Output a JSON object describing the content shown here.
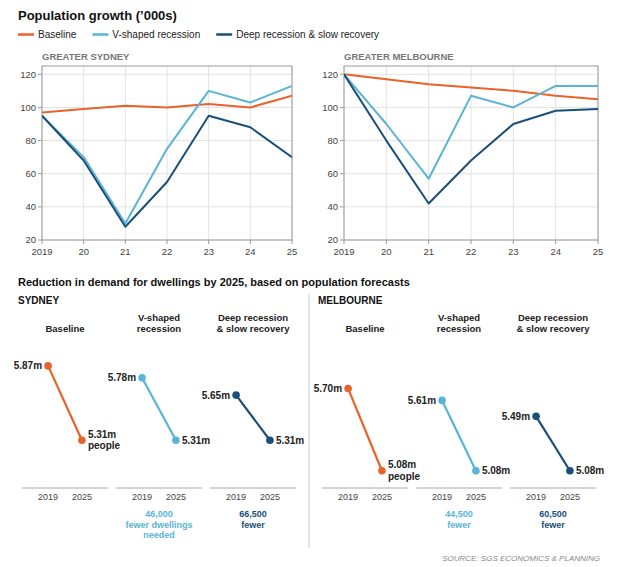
{
  "chart_data": [
    {
      "type": "line",
      "title": "Population growth (’000s)",
      "subtitle": "GREATER SYDNEY",
      "x": [
        2019,
        2020,
        2021,
        2022,
        2023,
        2024,
        2025
      ],
      "xlim": [
        2019,
        2025
      ],
      "xticks": [
        2019,
        {
          "value": 2020,
          "label": "20"
        },
        {
          "value": 2021,
          "label": "21"
        },
        {
          "value": 2022,
          "label": "22"
        },
        {
          "value": 2023,
          "label": "23"
        },
        {
          "value": 2024,
          "label": "24"
        },
        {
          "value": 2025,
          "label": "25"
        }
      ],
      "ylim": [
        20,
        125
      ],
      "yticks": [
        20,
        40,
        60,
        80,
        100,
        120
      ],
      "grid": true,
      "legend": "top",
      "series": [
        {
          "name": "Baseline",
          "color": "#e8622a",
          "values": [
            97,
            99,
            101,
            100,
            102,
            100,
            107
          ]
        },
        {
          "name": "V-shaped recession",
          "color": "#5ab4d6",
          "values": [
            95,
            70,
            30,
            75,
            110,
            103,
            113
          ]
        },
        {
          "name": "Deep recession & slow recovery",
          "color": "#1a4f7a",
          "values": [
            95,
            68,
            28,
            55,
            95,
            88,
            70
          ]
        }
      ]
    },
    {
      "type": "line",
      "subtitle": "GREATER MELBOURNE",
      "x": [
        2019,
        2020,
        2021,
        2022,
        2023,
        2024,
        2025
      ],
      "xlim": [
        2019,
        2025
      ],
      "xticks": [
        2019,
        {
          "value": 2020,
          "label": "20"
        },
        {
          "value": 2021,
          "label": "21"
        },
        {
          "value": 2022,
          "label": "22"
        },
        {
          "value": 2023,
          "label": "23"
        },
        {
          "value": 2024,
          "label": "24"
        },
        {
          "value": 2025,
          "label": "25"
        }
      ],
      "ylim": [
        20,
        125
      ],
      "yticks": [
        20,
        40,
        60,
        80,
        100,
        120
      ],
      "grid": true,
      "series": [
        {
          "color": "#e8622a",
          "values": [
            120,
            117,
            114,
            112,
            110,
            107,
            105
          ]
        },
        {
          "color": "#5ab4d6",
          "values": [
            120,
            90,
            57,
            107,
            100,
            113,
            113
          ]
        },
        {
          "color": "#1a4f7a",
          "values": [
            120,
            80,
            42,
            68,
            90,
            98,
            99
          ]
        }
      ]
    },
    {
      "type": "slope",
      "title": "Reduction in demand for dwellings by 2025, based on population forecasts",
      "subtitle": "SYDNEY",
      "categories": [
        "2019",
        "2025"
      ],
      "ylim": [
        4.95,
        6.05
      ],
      "tick_labels": "x",
      "series": [
        {
          "name": "Baseline",
          "color": "#e8622a",
          "values": [
            5.87,
            5.31
          ],
          "value_labels": [
            "5.87m",
            "5.31m\npeople"
          ]
        },
        {
          "name": "V-shaped\nrecession",
          "color": "#5ab4d6",
          "values": [
            5.78,
            5.31
          ],
          "value_labels": [
            "5.78m",
            "5.31m"
          ],
          "annotation": "46,000\nfewer dwellings\nneeded"
        },
        {
          "name": "Deep recession\n& slow recovery",
          "color": "#1a4f7a",
          "values": [
            5.65,
            5.31
          ],
          "value_labels": [
            "5.65m",
            "5.31m"
          ],
          "annotation": "66,500\nfewer"
        }
      ]
    },
    {
      "type": "slope",
      "subtitle": "MELBOURNE",
      "categories": [
        "2019",
        "2025"
      ],
      "ylim": [
        4.95,
        6.05
      ],
      "tick_labels": "x",
      "source": "SOURCE: SGS ECONOMICS & PLANNING",
      "series": [
        {
          "name": "Baseline",
          "color": "#e8622a",
          "values": [
            5.7,
            5.08
          ],
          "value_labels": [
            "5.70m",
            "5.08m\npeople"
          ]
        },
        {
          "name": "V-shaped\nrecession",
          "color": "#5ab4d6",
          "values": [
            5.61,
            5.08
          ],
          "value_labels": [
            "5.61m",
            "5.08m"
          ],
          "annotation": "44,500\nfewer"
        },
        {
          "name": "Deep recession\n& slow recovery",
          "color": "#1a4f7a",
          "values": [
            5.49,
            5.08
          ],
          "value_labels": [
            "5.49m",
            "5.08m"
          ],
          "annotation": "60,500\nfewer"
        }
      ]
    }
  ]
}
